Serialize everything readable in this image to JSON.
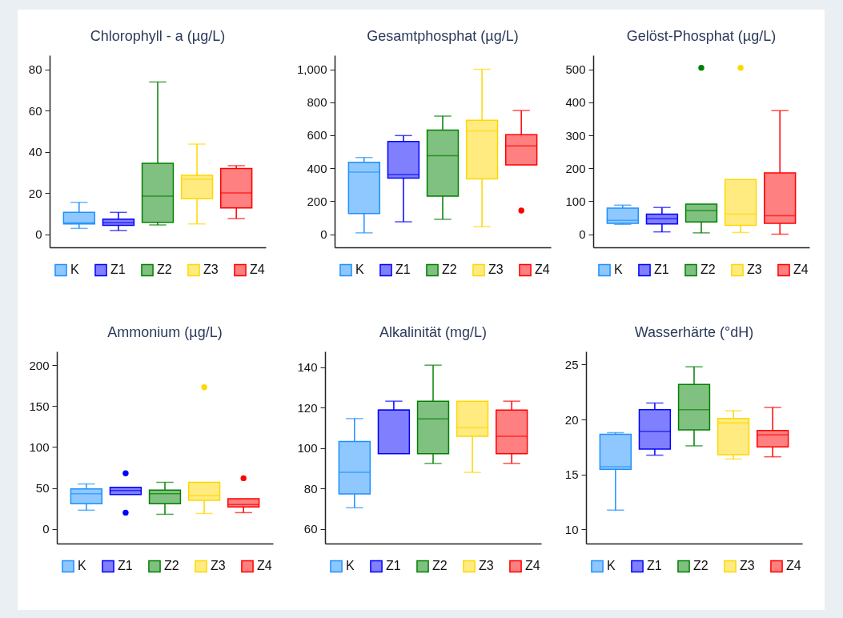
{
  "chart_data": [
    {
      "type": "box",
      "title": "Chlorophyll - a (µg/L)",
      "categories": [
        null
      ],
      "ylim": [
        -6.4,
        87
      ],
      "yticks": [
        0,
        20,
        40,
        60,
        80
      ],
      "tick_labels": "y",
      "legend": "bottom",
      "series": [
        {
          "name": "K",
          "color": "#1e90ff",
          "boxes": [
            {
              "low": 2.8,
              "q1": 5,
              "median": 5.6,
              "q3": 10.6,
              "high": 15.5
            }
          ]
        },
        {
          "name": "Z1",
          "color": "#0000ff",
          "boxes": [
            {
              "low": 1.8,
              "q1": 4.3,
              "median": 5.6,
              "q3": 7.3,
              "high": 10.6
            }
          ]
        },
        {
          "name": "Z2",
          "color": "#008000",
          "boxes": [
            {
              "low": 4.5,
              "q1": 5.8,
              "median": 18.5,
              "q3": 34.5,
              "high": 74
            }
          ]
        },
        {
          "name": "Z3",
          "color": "#ffd700",
          "boxes": [
            {
              "low": 5,
              "q1": 17.2,
              "median": 26.7,
              "q3": 28.6,
              "high": 43.8
            }
          ]
        },
        {
          "name": "Z4",
          "color": "#ff0000",
          "boxes": [
            {
              "low": 7.6,
              "q1": 12.8,
              "median": 20.1,
              "q3": 31.9,
              "high": 33.3
            }
          ]
        }
      ]
    },
    {
      "type": "box",
      "title": "Gesamtphosphat (µg/L)",
      "categories": [
        null
      ],
      "ylim": [
        -80,
        1085
      ],
      "yticks": [
        0,
        200,
        400,
        600,
        800,
        {
          "value": 1000,
          "label": "1,000"
        }
      ],
      "tick_labels": "y",
      "legend": "bottom",
      "series": [
        {
          "name": "K",
          "color": "#1e90ff",
          "boxes": [
            {
              "low": 8,
              "q1": 125,
              "median": 376,
              "q3": 436,
              "high": 465
            }
          ]
        },
        {
          "name": "Z1",
          "color": "#0000ff",
          "boxes": [
            {
              "low": 75,
              "q1": 340,
              "median": 361,
              "q3": 562,
              "high": 598
            }
          ]
        },
        {
          "name": "Z2",
          "color": "#008000",
          "boxes": [
            {
              "low": 90,
              "q1": 231,
              "median": 476,
              "q3": 631,
              "high": 716
            }
          ]
        },
        {
          "name": "Z3",
          "color": "#ffd700",
          "boxes": [
            {
              "low": 45,
              "q1": 335,
              "median": 626,
              "q3": 690,
              "high": 1000
            }
          ]
        },
        {
          "name": "Z4",
          "color": "#ff0000",
          "boxes": [
            {
              "low": 420,
              "q1": 420,
              "median": 535,
              "q3": 603,
              "high": 750,
              "outliers": [
                143
              ]
            }
          ]
        }
      ]
    },
    {
      "type": "box",
      "title": "Gelöst-Phosphat (µg/L)",
      "categories": [
        null
      ],
      "ylim": [
        -40,
        543
      ],
      "yticks": [
        0,
        100,
        200,
        300,
        400,
        500
      ],
      "tick_labels": "y",
      "legend": "bottom",
      "series": [
        {
          "name": "K",
          "color": "#1e90ff",
          "boxes": [
            {
              "low": 30,
              "q1": 33,
              "median": 42,
              "q3": 79,
              "high": 88
            }
          ]
        },
        {
          "name": "Z1",
          "color": "#0000ff",
          "boxes": [
            {
              "low": 7,
              "q1": 31,
              "median": 47,
              "q3": 61,
              "high": 81
            }
          ]
        },
        {
          "name": "Z2",
          "color": "#008000",
          "boxes": [
            {
              "low": 4,
              "q1": 37,
              "median": 72,
              "q3": 91,
              "high": 91,
              "outliers": [
                505
              ]
            }
          ]
        },
        {
          "name": "Z3",
          "color": "#ffd700",
          "boxes": [
            {
              "low": 5,
              "q1": 27,
              "median": 61,
              "q3": 166,
              "high": 166,
              "outliers": [
                505
              ]
            }
          ]
        },
        {
          "name": "Z4",
          "color": "#ff0000",
          "boxes": [
            {
              "low": 0,
              "q1": 33,
              "median": 56,
              "q3": 186,
              "high": 375
            }
          ]
        }
      ]
    },
    {
      "type": "box",
      "title": "Ammonium (µg/L)",
      "categories": [
        null
      ],
      "ylim": [
        -17.7,
        216.7
      ],
      "yticks": [
        0,
        50,
        100,
        150,
        200
      ],
      "tick_labels": "y",
      "legend": "bottom",
      "series": [
        {
          "name": "K",
          "color": "#1e90ff",
          "boxes": [
            {
              "low": 23,
              "q1": 31,
              "median": 43,
              "q3": 49,
              "high": 55
            }
          ]
        },
        {
          "name": "Z1",
          "color": "#0000ff",
          "boxes": [
            {
              "low": 42,
              "q1": 42,
              "median": 47,
              "q3": 51,
              "high": 51,
              "outliers": [
                20,
                68
              ]
            }
          ]
        },
        {
          "name": "Z2",
          "color": "#008000",
          "boxes": [
            {
              "low": 18,
              "q1": 31,
              "median": 43,
              "q3": 47.5,
              "high": 57
            }
          ]
        },
        {
          "name": "Z3",
          "color": "#ffd700",
          "boxes": [
            {
              "low": 19,
              "q1": 35,
              "median": 41,
              "q3": 57,
              "high": 57,
              "outliers": [
                173
              ]
            }
          ]
        },
        {
          "name": "Z4",
          "color": "#ff0000",
          "boxes": [
            {
              "low": 20,
              "q1": 27,
              "median": 30,
              "q3": 37,
              "high": 37,
              "outliers": [
                62
              ]
            }
          ]
        }
      ]
    },
    {
      "type": "box",
      "title": "Alkalinität (mg/L)",
      "categories": [
        null
      ],
      "ylim": [
        52.8,
        147.8
      ],
      "yticks": [
        60,
        80,
        100,
        120,
        140
      ],
      "tick_labels": "y",
      "legend": "bottom",
      "series": [
        {
          "name": "K",
          "color": "#1e90ff",
          "boxes": [
            {
              "low": 70.5,
              "q1": 77.3,
              "median": 88,
              "q3": 103.3,
              "high": 114.6
            }
          ]
        },
        {
          "name": "Z1",
          "color": "#0000ff",
          "boxes": [
            {
              "low": 97.2,
              "q1": 97.2,
              "median": 118.8,
              "q3": 118.8,
              "high": 123.2
            }
          ]
        },
        {
          "name": "Z2",
          "color": "#008000",
          "boxes": [
            {
              "low": 92.4,
              "q1": 97.2,
              "median": 114.5,
              "q3": 123.2,
              "high": 141
            }
          ]
        },
        {
          "name": "Z3",
          "color": "#ffd700",
          "boxes": [
            {
              "low": 88,
              "q1": 105.8,
              "median": 110.1,
              "q3": 123.2,
              "high": 123.2
            }
          ]
        },
        {
          "name": "Z4",
          "color": "#ff0000",
          "boxes": [
            {
              "low": 92.4,
              "q1": 97.2,
              "median": 105.8,
              "q3": 118.8,
              "high": 123.2
            }
          ]
        }
      ]
    },
    {
      "type": "box",
      "title": "Wasserhärte (°dH)",
      "categories": [
        null
      ],
      "ylim": [
        8.7,
        26.2
      ],
      "yticks": [
        10,
        15,
        20,
        25
      ],
      "tick_labels": "y",
      "legend": "bottom",
      "series": [
        {
          "name": "K",
          "color": "#1e90ff",
          "boxes": [
            {
              "low": 11.75,
              "q1": 15.46,
              "median": 15.7,
              "q3": 18.65,
              "high": 18.8
            }
          ]
        },
        {
          "name": "Z1",
          "color": "#0000ff",
          "boxes": [
            {
              "low": 16.75,
              "q1": 17.3,
              "median": 18.9,
              "q3": 20.9,
              "high": 21.5
            }
          ]
        },
        {
          "name": "Z2",
          "color": "#008000",
          "boxes": [
            {
              "low": 17.6,
              "q1": 19.06,
              "median": 20.9,
              "q3": 23.2,
              "high": 24.8
            }
          ]
        },
        {
          "name": "Z3",
          "color": "#ffd700",
          "boxes": [
            {
              "low": 16.4,
              "q1": 16.8,
              "median": 19.7,
              "q3": 20.1,
              "high": 20.8
            }
          ]
        },
        {
          "name": "Z4",
          "color": "#ff0000",
          "boxes": [
            {
              "low": 16.6,
              "q1": 17.5,
              "median": 18.6,
              "q3": 19,
              "high": 21.1
            }
          ]
        }
      ]
    }
  ]
}
